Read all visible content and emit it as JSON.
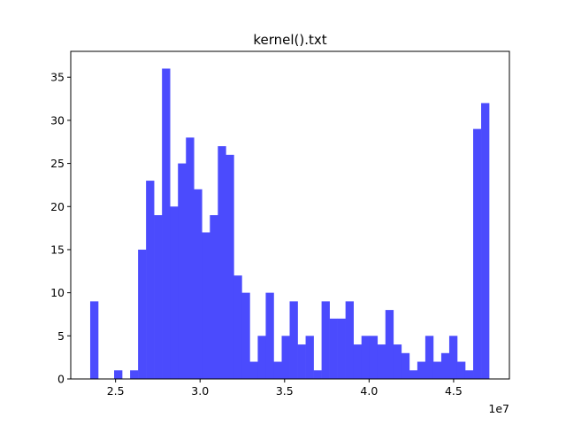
{
  "chart_data": {
    "type": "bar",
    "title": "kernel().txt",
    "xlabel": "",
    "ylabel": "",
    "x_offset_label": "1e7",
    "xlim": [
      2.235,
      4.83
    ],
    "ylim": [
      0,
      38
    ],
    "x_ticks": [
      2.5,
      3.0,
      3.5,
      4.0,
      4.5
    ],
    "x_tick_labels": [
      "2.5",
      "3.0",
      "3.5",
      "4.0",
      "4.5"
    ],
    "y_ticks": [
      0,
      5,
      10,
      15,
      20,
      25,
      30,
      35
    ],
    "y_tick_labels": [
      "0",
      "5",
      "10",
      "15",
      "20",
      "25",
      "30",
      "35"
    ],
    "bin_start": 2.35,
    "bin_end": 4.71,
    "bin_count": 50,
    "values": [
      9,
      0,
      0,
      1,
      0,
      1,
      15,
      23,
      19,
      36,
      20,
      25,
      28,
      22,
      17,
      19,
      27,
      26,
      12,
      10,
      2,
      5,
      10,
      2,
      5,
      9,
      4,
      5,
      1,
      9,
      7,
      7,
      9,
      4,
      5,
      5,
      4,
      8,
      4,
      3,
      1,
      2,
      5,
      2,
      3,
      5,
      2,
      1,
      29,
      32
    ],
    "bar_color": "#4b4bfd",
    "grid": false,
    "legend": "none"
  }
}
